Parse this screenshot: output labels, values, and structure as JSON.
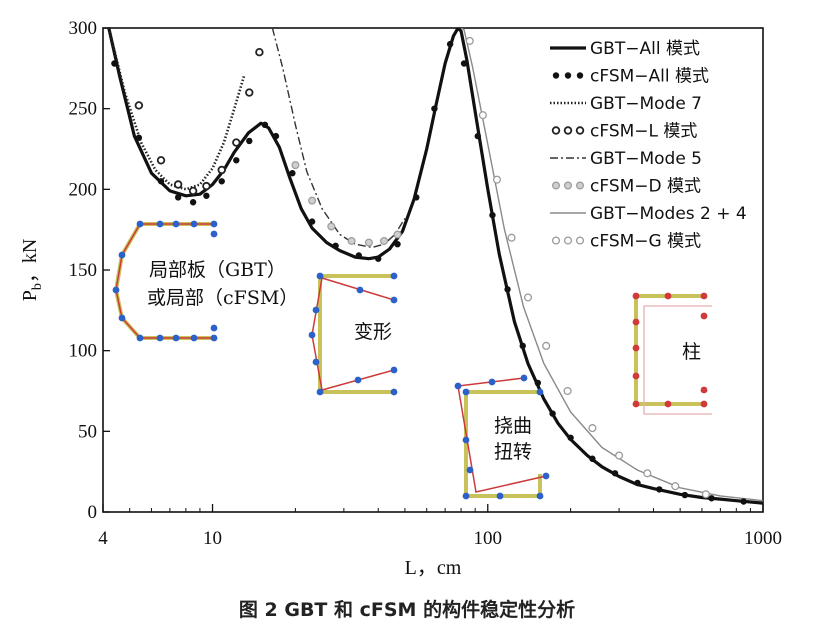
{
  "caption": "图 2  GBT 和 cFSM 的构件稳定性分析",
  "chart_data": {
    "type": "line",
    "x_scale": "log",
    "xlim": [
      4,
      1000
    ],
    "ylim": [
      0,
      300
    ],
    "xlabel": "L，cm",
    "ylabel_main": "P",
    "ylabel_sub": "b",
    "ylabel_tail": "，kN",
    "x_ticks": [
      4,
      10,
      100,
      1000
    ],
    "x_tick_labels": [
      "4",
      "10",
      "100",
      "1000"
    ],
    "y_ticks": [
      0,
      50,
      100,
      150,
      200,
      250,
      300
    ],
    "y_tick_labels": [
      "0",
      "50",
      "100",
      "150",
      "200",
      "250",
      "300"
    ],
    "series": [
      {
        "name": "GBT−All 模式",
        "style": "solid-thick",
        "color": "#111111",
        "x": [
          4.2,
          4.6,
          5.2,
          6,
          7,
          8,
          9,
          10,
          11,
          12,
          13.5,
          15,
          16,
          17.5,
          19,
          21,
          23,
          26,
          29,
          33,
          37,
          40,
          44,
          49,
          54,
          60,
          65,
          70,
          75,
          78,
          80,
          84,
          90,
          100,
          110,
          125,
          140,
          160,
          180,
          200,
          230,
          260,
          300,
          350,
          400,
          500,
          600,
          700,
          800,
          1000
        ],
        "y": [
          300,
          270,
          233,
          210,
          199,
          196,
          197,
          203,
          212,
          223,
          235,
          241,
          238,
          226,
          208,
          188,
          176,
          167,
          162,
          158,
          157,
          158,
          163,
          174,
          194,
          225,
          253,
          278,
          295,
          300,
          298,
          280,
          248,
          200,
          160,
          118,
          92,
          70,
          55,
          45,
          35,
          28,
          22,
          17,
          14.5,
          11,
          9,
          8,
          7,
          5.5
        ]
      },
      {
        "name": "cFSM−All 模式",
        "style": "dots",
        "color": "#111111",
        "x": [
          4.4,
          5.4,
          6.5,
          7.5,
          8.5,
          9.5,
          10.8,
          12.2,
          13.6,
          15.5,
          17,
          19.5,
          23,
          28,
          34,
          40,
          47,
          55,
          64,
          73,
          82,
          92,
          104,
          118,
          134,
          152,
          172,
          200,
          240,
          290,
          350,
          420,
          520,
          650,
          850
        ],
        "y": [
          278,
          232,
          205,
          195,
          192,
          196,
          205,
          218,
          230,
          240,
          233,
          210,
          180,
          165,
          159,
          157,
          166,
          195,
          250,
          290,
          278,
          233,
          184,
          138,
          103,
          80,
          61,
          46,
          33,
          24,
          18,
          14,
          10.5,
          8.5,
          6.5
        ]
      },
      {
        "name": "GBT−Mode 7",
        "style": "dotted-thick",
        "color": "#222222",
        "x": [
          4.2,
          4.8,
          5.5,
          6.2,
          7,
          8,
          9,
          10,
          11,
          12,
          13
        ],
        "y": [
          300,
          260,
          229,
          212,
          203,
          200,
          203,
          213,
          229,
          250,
          270
        ]
      },
      {
        "name": "cFSM−L 模式",
        "style": "hollow-circles",
        "color": "#222222",
        "x": [
          5.4,
          6.5,
          7.5,
          8.5,
          9.5,
          10.8,
          12.2,
          13.6,
          14.8
        ],
        "y": [
          252,
          218,
          203,
          199,
          202,
          212,
          229,
          260,
          285
        ]
      },
      {
        "name": "GBT−Mode 5",
        "style": "dash-dot",
        "color": "#333333",
        "x": [
          16.5,
          18,
          20,
          22,
          25,
          29,
          33,
          38,
          42,
          46,
          50
        ],
        "y": [
          300,
          275,
          240,
          211,
          188,
          172,
          166,
          164,
          166,
          172,
          182
        ]
      },
      {
        "name": "cFSM−D 模式",
        "style": "grey-dots",
        "color": "#9a9a9a",
        "x": [
          20,
          23,
          27,
          32,
          37,
          42,
          47
        ],
        "y": [
          215,
          193,
          177,
          168,
          167,
          168,
          172
        ]
      },
      {
        "name": "GBT−Modes 2 + 4",
        "style": "thin-grey",
        "color": "#8a8a8a",
        "x": [
          80,
          82,
          88,
          100,
          115,
          135,
          160,
          200,
          260,
          350,
          500,
          700,
          1000
        ],
        "y": [
          300,
          299,
          276,
          228,
          175,
          127,
          92,
          62,
          40,
          26,
          15,
          10,
          7
        ]
      },
      {
        "name": "cFSM−G 模式",
        "style": "grey-hollow",
        "color": "#9a9a9a",
        "x": [
          86,
          96,
          108,
          122,
          140,
          163,
          195,
          240,
          300,
          380,
          480,
          620
        ],
        "y": [
          292,
          246,
          206,
          170,
          133,
          103,
          75,
          52,
          35,
          24,
          16,
          11
        ]
      }
    ],
    "legend": {
      "position": "top-right"
    },
    "annotations": {
      "local": "局部板（GBT）",
      "local2": "或局部（cFSM）",
      "distortional": "变形",
      "flexural_torsional_1": "挠曲",
      "flexural_torsional_2": "扭转",
      "global": "柱"
    }
  }
}
